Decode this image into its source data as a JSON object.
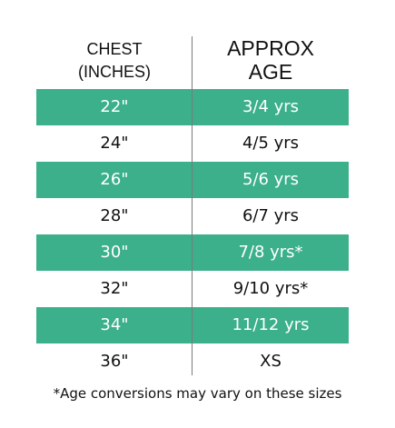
{
  "header": {
    "chest_line1": "CHEST",
    "chest_line2": "(INCHES)",
    "age_line1": "APPROX",
    "age_line2": "AGE"
  },
  "rows": [
    {
      "chest": "22\"",
      "age": "3/4 yrs",
      "highlight": true
    },
    {
      "chest": "24\"",
      "age": "4/5 yrs",
      "highlight": false
    },
    {
      "chest": "26\"",
      "age": "5/6 yrs",
      "highlight": true
    },
    {
      "chest": "28\"",
      "age": "6/7 yrs",
      "highlight": false
    },
    {
      "chest": "30\"",
      "age": "7/8 yrs*",
      "highlight": true
    },
    {
      "chest": "32\"",
      "age": "9/10 yrs*",
      "highlight": false
    },
    {
      "chest": "34\"",
      "age": "11/12 yrs",
      "highlight": true
    },
    {
      "chest": "36\"",
      "age": "XS",
      "highlight": false
    }
  ],
  "footnote": "*Age conversions may vary on these sizes",
  "colors": {
    "highlight_row": "#3cb08a",
    "divider": "#7a7a7a"
  }
}
